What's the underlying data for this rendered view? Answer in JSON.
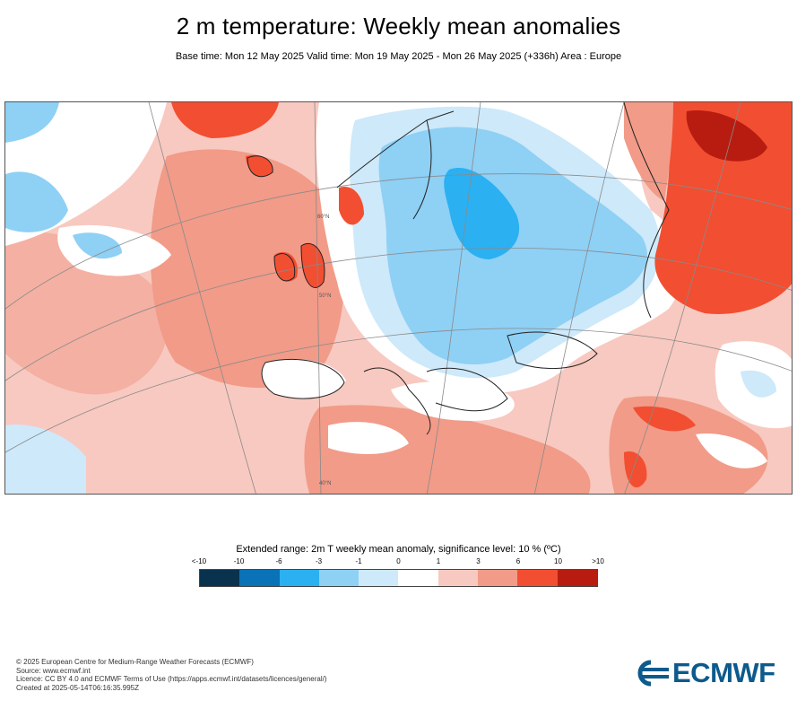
{
  "header": {
    "title": "2 m temperature: Weekly mean anomalies",
    "subtitle": "Base time: Mon 12 May 2025 Valid time: Mon 19 May 2025 - Mon 26 May 2025 (+336h) Area : Europe"
  },
  "map": {
    "region": "Europe",
    "variable": "2m temperature weekly mean anomaly",
    "colors": {
      "cool_strong": "#2bb0f2",
      "cool": "#8fd0f5",
      "cool_light": "#cde9fa",
      "neutral": "#ffffff",
      "warm_light": "#f8c9c0",
      "warm": "#f19b88",
      "warm_strong": "#f24e31",
      "warm_very": "#b81c10",
      "land_border": "#222222",
      "graticule": "#8a8a8a"
    },
    "graticule_labels": [
      "60°N",
      "50°N",
      "40°N"
    ]
  },
  "legend": {
    "title": "Extended range: 2m T weekly mean anomaly, significance level: 10 % (ºC)",
    "labels": [
      "<-10",
      "-10",
      "-6",
      "-3",
      "-1",
      "0",
      "1",
      "3",
      "6",
      "10",
      ">10"
    ],
    "colors": [
      "#09324f",
      "#0a72b6",
      "#2bb0f2",
      "#8fd0f5",
      "#cde9fa",
      "#ffffff",
      "#f8c9c0",
      "#f19b88",
      "#f24e31",
      "#b81c10",
      "#5c0a04"
    ]
  },
  "footer": {
    "lines": [
      "© 2025 European Centre for Medium-Range Weather Forecasts (ECMWF)",
      "Source: www.ecmwf.int",
      "Licence: CC BY 4.0 and ECMWF Terms of Use (https://apps.ecmwf.int/datasets/licences/general/)",
      "Created at 2025-05-14T06:16:35.995Z"
    ]
  },
  "logo": {
    "text": "ECMWF"
  }
}
